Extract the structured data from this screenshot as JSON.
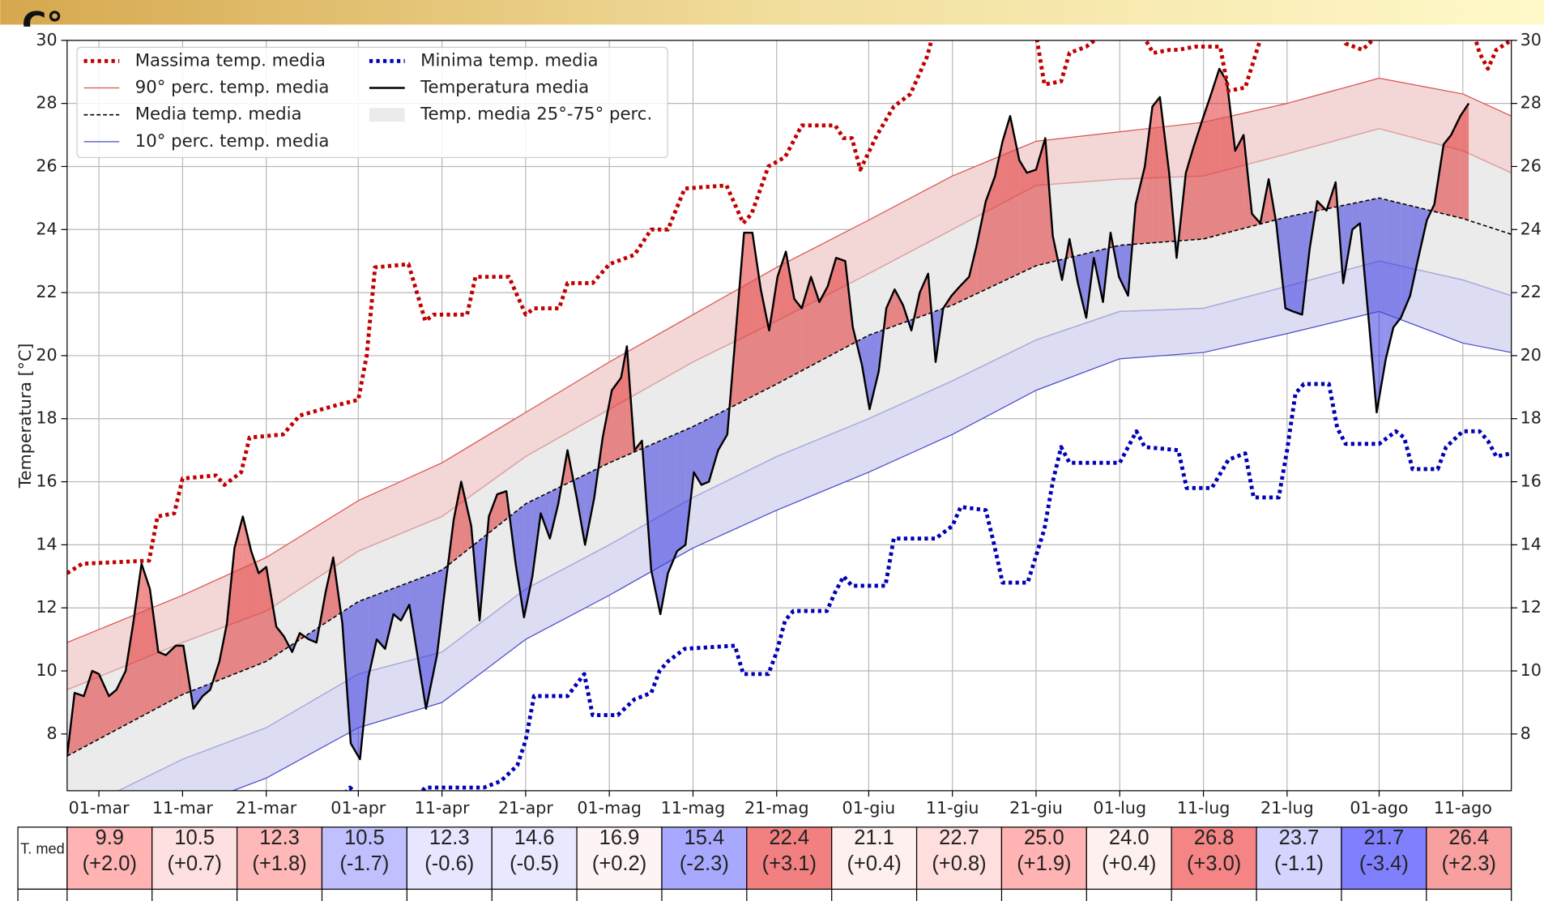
{
  "chart_data": {
    "type": "line",
    "top_label": "C°",
    "ylabel": "Temperatura [°C]",
    "xlim": [
      -3.8,
      168.8
    ],
    "ylim": [
      6.2,
      30
    ],
    "xticks": [
      {
        "value": 0,
        "label": "01-mar"
      },
      {
        "value": 10,
        "label": "11-mar"
      },
      {
        "value": 20,
        "label": "21-mar"
      },
      {
        "value": 31,
        "label": "01-apr"
      },
      {
        "value": 41,
        "label": "11-apr"
      },
      {
        "value": 51,
        "label": "21-apr"
      },
      {
        "value": 61,
        "label": "01-mag"
      },
      {
        "value": 71,
        "label": "11-mag"
      },
      {
        "value": 81,
        "label": "21-mag"
      },
      {
        "value": 92,
        "label": "01-giu"
      },
      {
        "value": 102,
        "label": "11-giu"
      },
      {
        "value": 112,
        "label": "21-giu"
      },
      {
        "value": 122,
        "label": "01-lug"
      },
      {
        "value": 132,
        "label": "11-lug"
      },
      {
        "value": 142,
        "label": "21-lug"
      },
      {
        "value": 153,
        "label": "01-ago"
      },
      {
        "value": 163,
        "label": "11-ago"
      }
    ],
    "yticks": [
      8,
      10,
      12,
      14,
      16,
      18,
      20,
      22,
      24,
      26,
      28,
      30
    ],
    "grid": true,
    "legend": "upper left",
    "series": [
      {
        "name": "Massima temp. media",
        "color": "#c00000",
        "style": "dotted",
        "x": [
          -3.8,
          -2,
          6,
          7,
          9,
          10,
          14,
          15,
          17,
          18,
          22,
          24,
          28,
          31,
          32,
          33,
          37,
          39,
          40,
          44,
          45,
          49,
          51,
          52,
          55,
          56,
          59,
          61,
          64,
          66,
          68,
          70,
          75,
          77,
          78,
          80,
          82,
          84,
          88,
          89,
          90,
          91,
          93,
          95,
          97,
          99,
          100,
          101,
          110,
          112,
          113,
          115,
          116,
          118,
          120,
          124,
          126,
          128,
          129,
          131,
          134,
          135,
          137,
          139,
          140,
          148,
          149,
          151,
          153,
          164,
          165,
          166,
          167,
          168.8
        ],
        "values": [
          13.1,
          13.4,
          13.5,
          14.9,
          15.0,
          16.1,
          16.2,
          15.9,
          16.3,
          17.4,
          17.5,
          18.1,
          18.4,
          18.6,
          20.0,
          22.8,
          22.9,
          21.1,
          21.3,
          21.3,
          22.5,
          22.5,
          21.3,
          21.5,
          21.5,
          22.3,
          22.3,
          22.9,
          23.2,
          24.0,
          24.0,
          25.3,
          25.4,
          24.2,
          24.5,
          26.0,
          26.3,
          27.3,
          27.3,
          26.9,
          26.9,
          25.9,
          27.0,
          27.9,
          28.3,
          29.5,
          30.5,
          31.5,
          31.5,
          30.2,
          28.6,
          28.7,
          29.6,
          29.8,
          30.2,
          30.5,
          29.6,
          29.7,
          29.7,
          29.8,
          29.8,
          28.4,
          28.5,
          30.2,
          31.5,
          31.5,
          29.9,
          29.7,
          30.2,
          30.5,
          29.6,
          29.1,
          29.7,
          30.0
        ]
      },
      {
        "name": "90° perc. temp. media",
        "color": "#d9534f",
        "style": "solid",
        "x": [
          -3.8,
          10,
          20,
          31,
          41,
          51,
          61,
          71,
          81,
          92,
          102,
          112,
          122,
          132,
          142,
          153,
          163,
          168.8
        ],
        "values": [
          10.9,
          12.4,
          13.6,
          15.4,
          16.6,
          18.2,
          19.8,
          21.3,
          22.8,
          24.3,
          25.7,
          26.8,
          27.1,
          27.4,
          28.0,
          28.8,
          28.3,
          27.6
        ]
      },
      {
        "name": "Media temp. media",
        "color": "#000000",
        "style": "dashed",
        "x": [
          -3.8,
          10,
          20,
          31,
          41,
          51,
          61,
          71,
          81,
          92,
          102,
          112,
          122,
          132,
          142,
          153,
          163,
          168.8
        ],
        "values": [
          7.3,
          9.25,
          10.3,
          12.2,
          13.2,
          15.3,
          16.6,
          17.75,
          19.1,
          20.65,
          21.6,
          22.85,
          23.5,
          23.7,
          24.4,
          25.0,
          24.35,
          23.85
        ]
      },
      {
        "name": "10° perc. temp. media",
        "color": "#4a4ac8",
        "style": "solid",
        "x": [
          -3.8,
          10,
          20,
          31,
          41,
          51,
          61,
          71,
          81,
          92,
          102,
          112,
          122,
          132,
          142,
          153,
          163,
          168.8
        ],
        "values": [
          4.2,
          5.6,
          6.6,
          8.2,
          9.0,
          11.0,
          12.4,
          13.9,
          15.1,
          16.3,
          17.5,
          18.9,
          19.9,
          20.1,
          20.7,
          21.4,
          20.4,
          20.1
        ]
      },
      {
        "name": "Minima temp. media",
        "color": "#0000b4",
        "style": "dotted",
        "x": [
          -3.8,
          26,
          29,
          30,
          32,
          38,
          39,
          46,
          48,
          50,
          51,
          52,
          56,
          58,
          59,
          62,
          64,
          66,
          67,
          68,
          70,
          76,
          77,
          80,
          81,
          82,
          83,
          87,
          88,
          89,
          90,
          94,
          95,
          100,
          102,
          103,
          106,
          107,
          108,
          111,
          113,
          114,
          115,
          116,
          122,
          123,
          124,
          125,
          129,
          130,
          133,
          135,
          137,
          138,
          141,
          142,
          143,
          144,
          147,
          148,
          149,
          153,
          155,
          156,
          157,
          160,
          161,
          163,
          165,
          166,
          167,
          168.8
        ],
        "values": [
          3.0,
          5.5,
          6.0,
          6.3,
          5.8,
          6.0,
          6.3,
          6.3,
          6.5,
          7.0,
          7.8,
          9.2,
          9.2,
          9.9,
          8.6,
          8.6,
          9.1,
          9.3,
          10.0,
          10.3,
          10.7,
          10.8,
          9.9,
          9.9,
          10.6,
          11.6,
          11.9,
          11.9,
          12.5,
          13.0,
          12.7,
          12.7,
          14.2,
          14.2,
          14.6,
          15.2,
          15.1,
          14.0,
          12.8,
          12.8,
          14.5,
          16.0,
          17.1,
          16.6,
          16.6,
          17.1,
          17.6,
          17.1,
          17.0,
          15.8,
          15.8,
          16.7,
          16.9,
          15.5,
          15.5,
          17.0,
          18.8,
          19.1,
          19.1,
          17.7,
          17.2,
          17.2,
          17.6,
          17.4,
          16.4,
          16.4,
          17.1,
          17.6,
          17.6,
          17.3,
          16.8,
          16.9
        ]
      },
      {
        "name": "Temperatura media",
        "color": "#000000",
        "style": "solid",
        "x": [
          -3.8,
          -2.9,
          -1.8,
          -0.8,
          0,
          1.2,
          2.1,
          3.2,
          4.1,
          5.1,
          6.1,
          7.1,
          8,
          9.2,
          10.1,
          11.3,
          12.4,
          13.3,
          14.4,
          15.3,
          16.2,
          17.2,
          18.2,
          19.1,
          20,
          21.2,
          22.1,
          23.1,
          24,
          25.1,
          26,
          27.1,
          28,
          29.1,
          30.1,
          31.2,
          32.2,
          33.2,
          34.2,
          35.2,
          36.1,
          37.1,
          39.1,
          40.4,
          41.4,
          42.4,
          43.3,
          44.5,
          45.5,
          46.6,
          47.6,
          48.7,
          49.8,
          50.8,
          51.8,
          52.8,
          53.9,
          54.9,
          56,
          57.1,
          58.1,
          59.2,
          60.2,
          61.3,
          62.4,
          63.1,
          64,
          64.9,
          66,
          67.1,
          68,
          69.1,
          70.1,
          71.1,
          72,
          72.9,
          74,
          75.1,
          76,
          77.1,
          78.1,
          79.1,
          80.1,
          81.1,
          82.1,
          83.1,
          84,
          85.1,
          86.1,
          87.1,
          88.1,
          89.2,
          90.1,
          91.2,
          92.1,
          93.2,
          94.1,
          95.1,
          96.1,
          97.1,
          98.1,
          99.1,
          100,
          100.9,
          101.9,
          102.9,
          104,
          104.9,
          106,
          107.1,
          108,
          108.9,
          110,
          110.9,
          112,
          113.1,
          114,
          115.1,
          116,
          117,
          118,
          118.9,
          120,
          120.9,
          121.9,
          123,
          123.9,
          125,
          125.9,
          126.8,
          127.9,
          128.8,
          129.9,
          130.8,
          131.9,
          132.8,
          133.9,
          134.8,
          135.8,
          136.8,
          137.8,
          138.8,
          139.8,
          140.7,
          141.8,
          142.7,
          143.8,
          144.7,
          145.6,
          146.7,
          147.8,
          148.7,
          149.8,
          150.7,
          151.8,
          152.7,
          153.8,
          154.7,
          155.6,
          156.7,
          157.6,
          158.7,
          159.6,
          160.7,
          161.6,
          162.7,
          163.7
        ],
        "values": [
          7.3,
          9.3,
          9.2,
          10.0,
          9.9,
          9.2,
          9.4,
          10.0,
          11.5,
          13.4,
          12.6,
          10.6,
          10.5,
          10.8,
          10.8,
          8.8,
          9.2,
          9.4,
          10.3,
          11.5,
          13.9,
          14.9,
          13.8,
          13.1,
          13.3,
          11.4,
          11.1,
          10.6,
          11.2,
          11.0,
          10.9,
          12.5,
          13.6,
          11.5,
          7.7,
          7.2,
          9.8,
          11.0,
          10.7,
          11.8,
          11.6,
          12.1,
          8.8,
          10.5,
          12.7,
          14.8,
          16.0,
          14.6,
          11.6,
          14.9,
          15.6,
          15.7,
          13.4,
          11.7,
          13.0,
          15.0,
          14.2,
          15.3,
          17.0,
          15.5,
          14.0,
          15.5,
          17.4,
          18.9,
          19.3,
          20.3,
          17.0,
          17.3,
          13.2,
          11.8,
          13.1,
          13.8,
          14.0,
          16.3,
          15.9,
          16.0,
          17.0,
          17.5,
          20.4,
          23.9,
          23.9,
          22.1,
          20.8,
          22.5,
          23.3,
          21.8,
          21.5,
          22.5,
          21.7,
          22.2,
          23.1,
          23.0,
          20.9,
          19.7,
          18.3,
          19.5,
          21.5,
          22.1,
          21.6,
          20.8,
          22.0,
          22.6,
          19.8,
          21.5,
          21.9,
          22.2,
          22.5,
          23.5,
          24.9,
          25.7,
          26.8,
          27.6,
          26.2,
          25.8,
          25.9,
          26.9,
          23.8,
          22.4,
          23.7,
          22.3,
          21.2,
          23.1,
          21.7,
          23.9,
          22.5,
          21.9,
          24.8,
          26.0,
          27.9,
          28.2,
          25.8,
          23.1,
          25.8,
          26.6,
          27.5,
          28.2,
          29.1,
          28.7,
          26.5,
          27.0,
          24.5,
          24.2,
          25.6,
          24.2,
          21.5,
          21.4,
          21.3,
          23.4,
          24.9,
          24.6,
          25.5,
          22.3,
          24.0,
          24.2,
          21.0,
          18.2,
          19.9,
          20.9,
          21.2,
          21.9,
          23.0,
          24.3,
          24.8,
          26.7,
          27.0,
          27.6,
          28.0
        ],
        "above_color": "#e02020",
        "below_color": "#2828e0"
      }
    ],
    "band": {
      "name": "Temp. media 25°-75° perc.",
      "color": "#ebebeb",
      "upper_color": "#f3d6d6",
      "lower_color": "#dcdcf3",
      "upper_line": "#dba0a0",
      "lower_line": "#a8a8dc",
      "x": [
        -3.8,
        10,
        20,
        31,
        41,
        51,
        61,
        71,
        81,
        92,
        102,
        112,
        122,
        132,
        142,
        153,
        163,
        168.8
      ],
      "lower": [
        5.4,
        7.2,
        8.2,
        9.9,
        10.6,
        12.6,
        14.0,
        15.5,
        16.8,
        18.0,
        19.2,
        20.5,
        21.4,
        21.5,
        22.2,
        23.0,
        22.4,
        21.9
      ],
      "upper": [
        9.4,
        10.9,
        11.9,
        13.8,
        14.9,
        16.8,
        18.3,
        19.8,
        21.1,
        22.6,
        24.0,
        25.4,
        25.6,
        25.7,
        26.4,
        27.2,
        26.5,
        25.8
      ]
    },
    "table": {
      "row_label": "T. med",
      "means": [
        "9.9",
        "10.5",
        "12.3",
        "10.5",
        "12.3",
        "14.6",
        "16.9",
        "15.4",
        "22.4",
        "21.1",
        "22.7",
        "25.0",
        "24.0",
        "26.8",
        "23.7",
        "21.7",
        "26.4"
      ],
      "anomalies": [
        "(+2.0)",
        "(+0.7)",
        "(+1.8)",
        "(-1.7)",
        "(-0.6)",
        "(-0.5)",
        "(+0.2)",
        "(-2.3)",
        "(+3.1)",
        "(+0.4)",
        "(+0.8)",
        "(+1.9)",
        "(+0.4)",
        "(+3.0)",
        "(-1.1)",
        "(-3.4)",
        "(+2.3)"
      ],
      "colors": [
        "#ffb3b3",
        "#ffe0e0",
        "#ffb8b8",
        "#c0c0ff",
        "#e6e6ff",
        "#e8e8ff",
        "#fff4f4",
        "#a8a8ff",
        "#f28080",
        "#fff0f0",
        "#ffdede",
        "#ffb3b3",
        "#fff0f0",
        "#f58585",
        "#d4d4ff",
        "#8080ff",
        "#f8a0a0"
      ]
    }
  }
}
